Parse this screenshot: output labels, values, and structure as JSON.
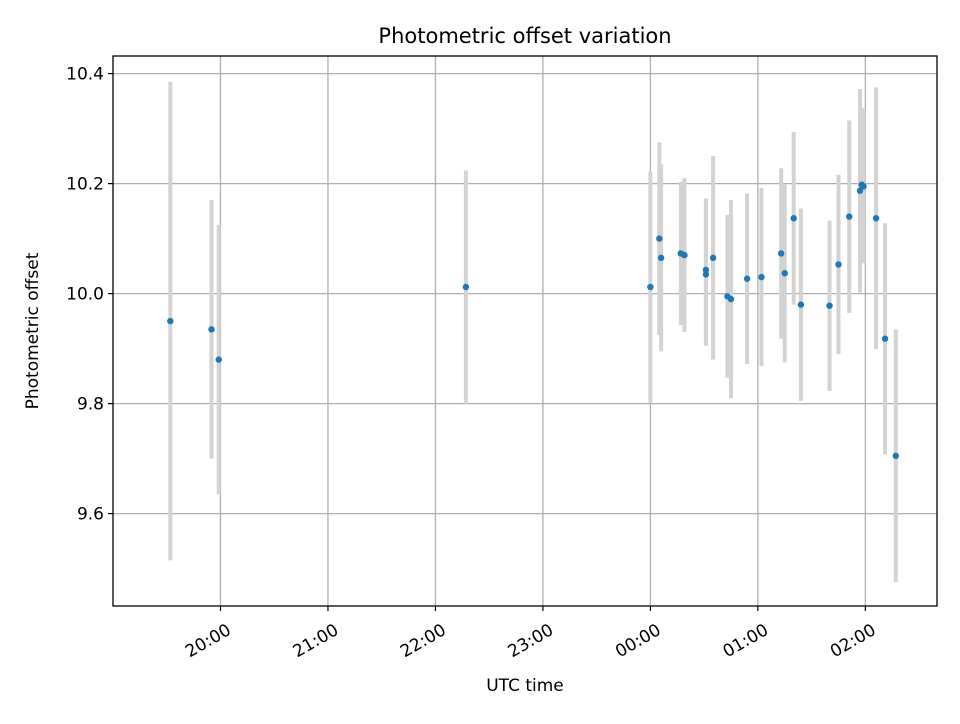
{
  "chart_data": {
    "type": "scatter",
    "title": "Photometric offset variation",
    "xlabel": "UTC time",
    "ylabel": "Photometric offset",
    "x_axis": {
      "kind": "time",
      "start": "19:00",
      "end": "02:40",
      "ticks": [
        {
          "value": "20:00",
          "label": "20:00"
        },
        {
          "value": "21:00",
          "label": "21:00"
        },
        {
          "value": "22:00",
          "label": "22:00"
        },
        {
          "value": "23:00",
          "label": "23:00"
        },
        {
          "value": "00:00",
          "label": "00:00"
        },
        {
          "value": "01:00",
          "label": "01:00"
        },
        {
          "value": "02:00",
          "label": "02:00"
        }
      ]
    },
    "ylim": [
      9.432,
      10.432
    ],
    "yticks": [
      {
        "value": 9.6,
        "label": "9.6"
      },
      {
        "value": 9.8,
        "label": "9.8"
      },
      {
        "value": 10.0,
        "label": "10.0"
      },
      {
        "value": 10.2,
        "label": "10.2"
      },
      {
        "value": 10.4,
        "label": "10.4"
      }
    ],
    "grid": true,
    "colors": {
      "point": "#1f77b4",
      "error_bar": "#d3d3d3"
    },
    "points": [
      {
        "time": "19:32",
        "y": 9.95,
        "err": 0.435
      },
      {
        "time": "19:55",
        "y": 9.935,
        "err": 0.235
      },
      {
        "time": "19:59",
        "y": 9.88,
        "err": 0.245
      },
      {
        "time": "22:17",
        "y": 10.012,
        "err": 0.212
      },
      {
        "time": "00:00",
        "y": 10.012,
        "err": 0.21
      },
      {
        "time": "00:05",
        "y": 10.1,
        "err": 0.175
      },
      {
        "time": "00:06",
        "y": 10.065,
        "err": 0.17
      },
      {
        "time": "00:17",
        "y": 10.073,
        "err": 0.13
      },
      {
        "time": "00:19",
        "y": 10.07,
        "err": 0.14
      },
      {
        "time": "00:31",
        "y": 10.035,
        "err": 0.13
      },
      {
        "time": "00:31",
        "y": 10.043,
        "err": 0.13
      },
      {
        "time": "00:35",
        "y": 10.065,
        "err": 0.185
      },
      {
        "time": "00:43",
        "y": 9.995,
        "err": 0.148
      },
      {
        "time": "00:45",
        "y": 9.99,
        "err": 0.18
      },
      {
        "time": "00:54",
        "y": 10.027,
        "err": 0.155
      },
      {
        "time": "01:02",
        "y": 10.03,
        "err": 0.162
      },
      {
        "time": "01:13",
        "y": 10.073,
        "err": 0.155
      },
      {
        "time": "01:15",
        "y": 10.037,
        "err": 0.162
      },
      {
        "time": "01:20",
        "y": 10.137,
        "err": 0.157
      },
      {
        "time": "01:24",
        "y": 9.98,
        "err": 0.175
      },
      {
        "time": "01:40",
        "y": 9.978,
        "err": 0.155
      },
      {
        "time": "01:45",
        "y": 10.053,
        "err": 0.163
      },
      {
        "time": "01:51",
        "y": 10.14,
        "err": 0.175
      },
      {
        "time": "01:57",
        "y": 10.187,
        "err": 0.185
      },
      {
        "time": "01:58",
        "y": 10.198,
        "err": 0.14
      },
      {
        "time": "01:59",
        "y": 10.195,
        "err": 0.14
      },
      {
        "time": "02:06",
        "y": 10.137,
        "err": 0.238
      },
      {
        "time": "02:11",
        "y": 9.918,
        "err": 0.21
      },
      {
        "time": "02:17",
        "y": 9.705,
        "err": 0.23
      }
    ]
  }
}
